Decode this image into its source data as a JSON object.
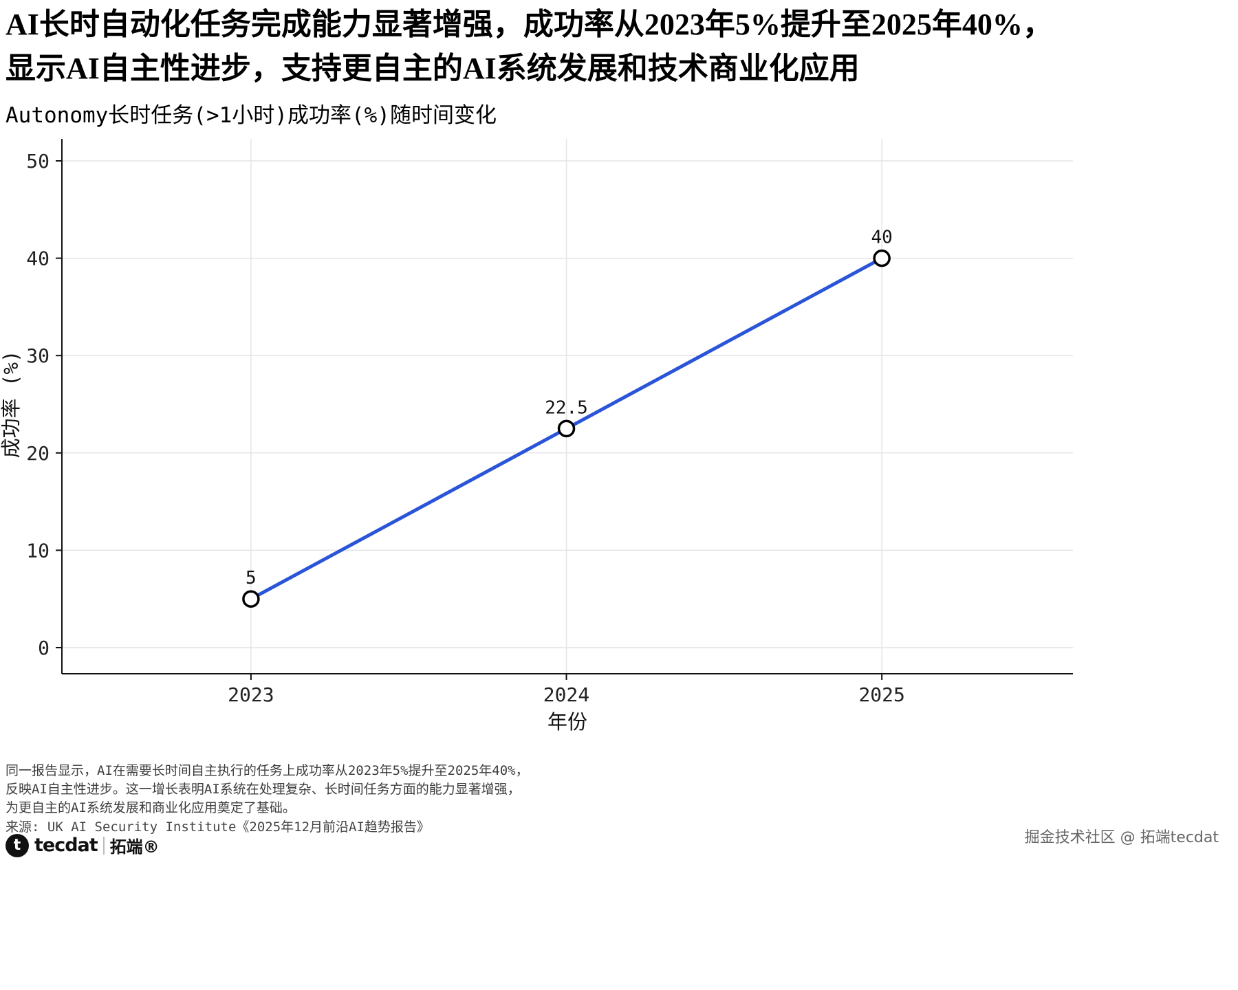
{
  "title": {
    "line1": "AI长时自动化任务完成能力显著增强，成功率从2023年5%提升至2025年40%，",
    "line2": "显示AI自主性进步，支持更自主的AI系统发展和技术商业化应用"
  },
  "subtitle": "Autonomy长时任务(>1小时)成功率(%)随时间变化",
  "chart_data": {
    "type": "line",
    "x": [
      2023,
      2024,
      2025
    ],
    "values": [
      5,
      22.5,
      40
    ],
    "point_labels": [
      "5",
      "22.5",
      "40"
    ],
    "categories": [
      "2023",
      "2024",
      "2025"
    ],
    "xticks": [
      "2023",
      "2024",
      "2025"
    ],
    "yticks": [
      0,
      10,
      20,
      30,
      40,
      50
    ],
    "ylim": [
      0,
      50
    ],
    "xlabel": "年份",
    "ylabel": "成功率 (%)",
    "title": "Autonomy长时任务(>1小时)成功率(%)随时间变化",
    "grid": true,
    "legend": "none",
    "line_color": "#2b55d8",
    "marker_fill": "#ffffff",
    "marker_stroke": "#000000",
    "grid_color": "#e4e4e4",
    "axis_color": "#111111"
  },
  "footnotes": [
    "同一报告显示，AI在需要长时间自主执行的任务上成功率从2023年5%提升至2025年40%，",
    "反映AI自主性进步。这一增长表明AI系统在处理复杂、长时间任务方面的能力显著增强，",
    "为更自主的AI系统发展和商业化应用奠定了基础。"
  ],
  "source": "来源: UK AI Security Institute《2025年12月前沿AI趋势报告》",
  "branding": {
    "logo_icon_letter": "t",
    "logo_text": "tecdat",
    "logo_cn": "拓端®",
    "watermark": "掘金技术社区 @ 拓端tecdat"
  }
}
